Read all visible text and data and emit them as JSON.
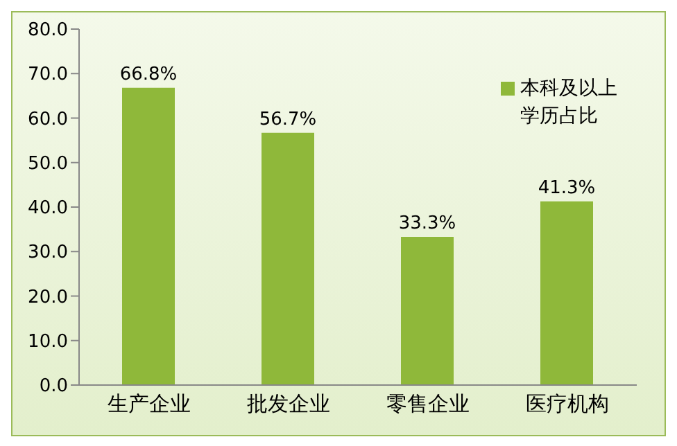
{
  "chart_data": {
    "type": "bar",
    "categories": [
      "生产企业",
      "批发企业",
      "零售企业",
      "医疗机构"
    ],
    "series": [
      {
        "name": "本科及以上学历占比",
        "color": "#8fb83a",
        "values": [
          66.8,
          56.7,
          33.3,
          41.3
        ],
        "value_labels": [
          "66.8%",
          "56.7%",
          "33.3%",
          "41.3%"
        ]
      }
    ],
    "ylim": [
      0,
      80
    ],
    "yticks": [
      {
        "value": 0,
        "label": "0.0"
      },
      {
        "value": 10,
        "label": "10.0"
      },
      {
        "value": 20,
        "label": "20.0"
      },
      {
        "value": 30,
        "label": "30.0"
      },
      {
        "value": 40,
        "label": "40.0"
      },
      {
        "value": 50,
        "label": "50.0"
      },
      {
        "value": 60,
        "label": "60.0"
      },
      {
        "value": 70,
        "label": "70.0"
      },
      {
        "value": 80,
        "label": "80.0"
      }
    ],
    "grid": false,
    "legend": "right"
  }
}
